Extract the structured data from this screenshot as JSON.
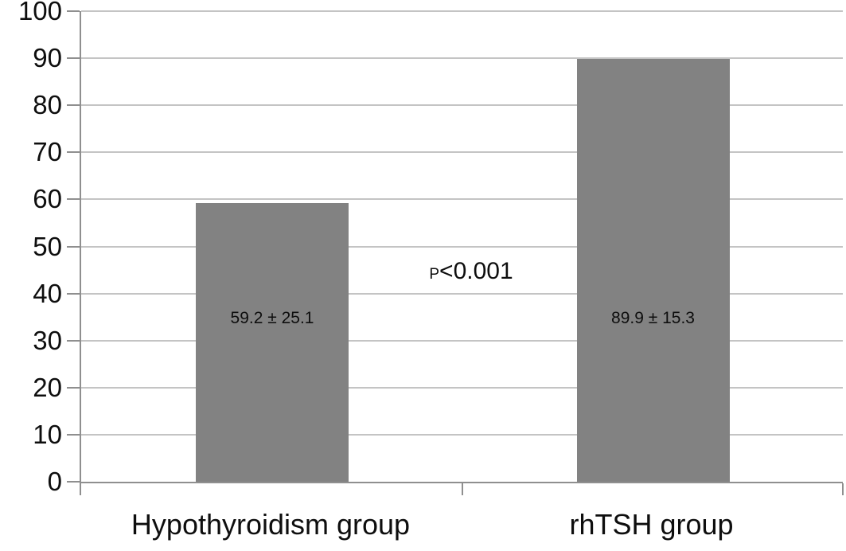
{
  "figure": {
    "background": "#ffffff",
    "bar_color": "#828282",
    "grid_color": "#c4c4c4",
    "axis_color": "#8f8f8f",
    "text_color": "#0e0e0e"
  },
  "chart_data": {
    "type": "bar",
    "title": "",
    "xlabel": "",
    "ylabel": "",
    "categories": [
      "Hypothyroidism group",
      "rhTSH group"
    ],
    "values": [
      59.2,
      89.9
    ],
    "errors": [
      25.1,
      15.3
    ],
    "bar_labels": [
      "59.2 ± 25.1",
      "89.9 ± 15.3"
    ],
    "annotation": {
      "prefix": "P",
      "value": "<0.001",
      "text": "P<0.001"
    },
    "ylim": [
      0,
      100
    ],
    "yticks": [
      0,
      10,
      20,
      30,
      40,
      50,
      60,
      70,
      80,
      90,
      100
    ],
    "grid": true,
    "legend": false
  }
}
